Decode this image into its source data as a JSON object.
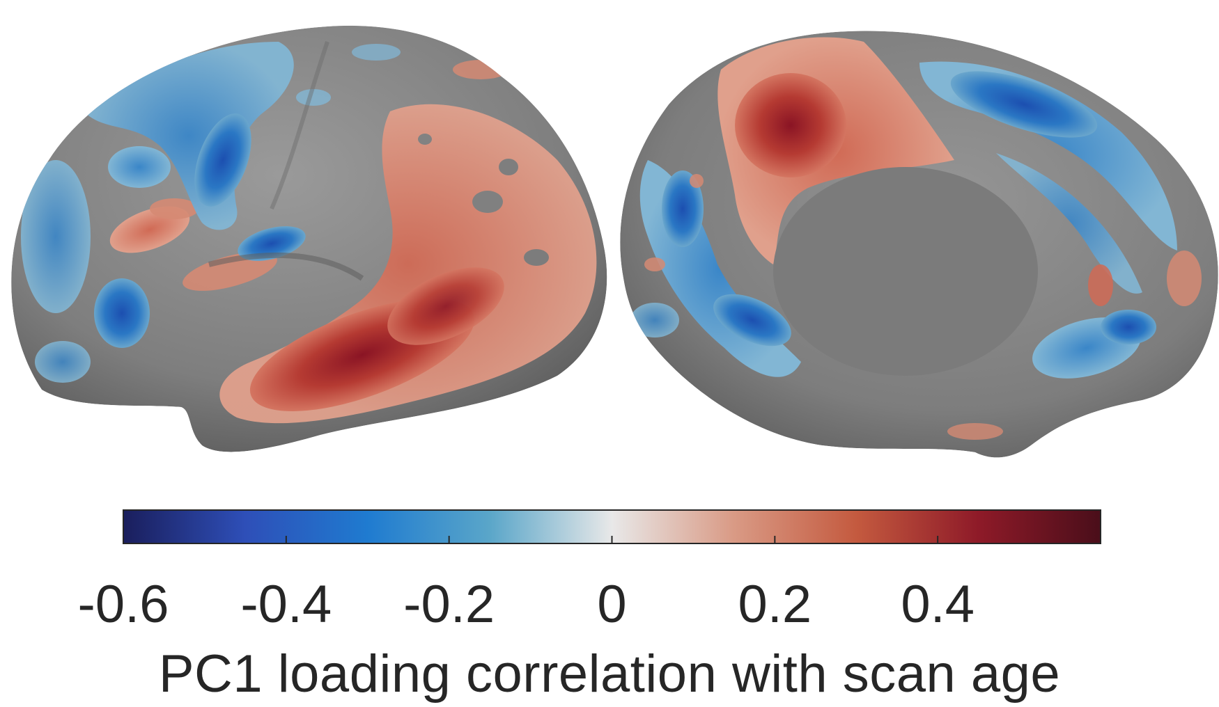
{
  "colorbar": {
    "ticks": [
      "-0.6",
      "-0.4",
      "-0.2",
      "0",
      "0.2",
      "0.4"
    ],
    "tick_values": [
      -0.6,
      -0.4,
      -0.2,
      0,
      0.2,
      0.4
    ],
    "range": [
      -0.6,
      0.6
    ],
    "label": "PC1 loading correlation with scan age",
    "colormap": [
      "#1a1e5c",
      "#2e4fb8",
      "#1f7bd0",
      "#5aa6c9",
      "#e8e8e8",
      "#d99a85",
      "#c45a3f",
      "#8e1a28",
      "#4a0e1a"
    ]
  },
  "brains": {
    "surface_color": "#808080",
    "positive_color": "#c8503c",
    "negative_color": "#2e78c8"
  }
}
